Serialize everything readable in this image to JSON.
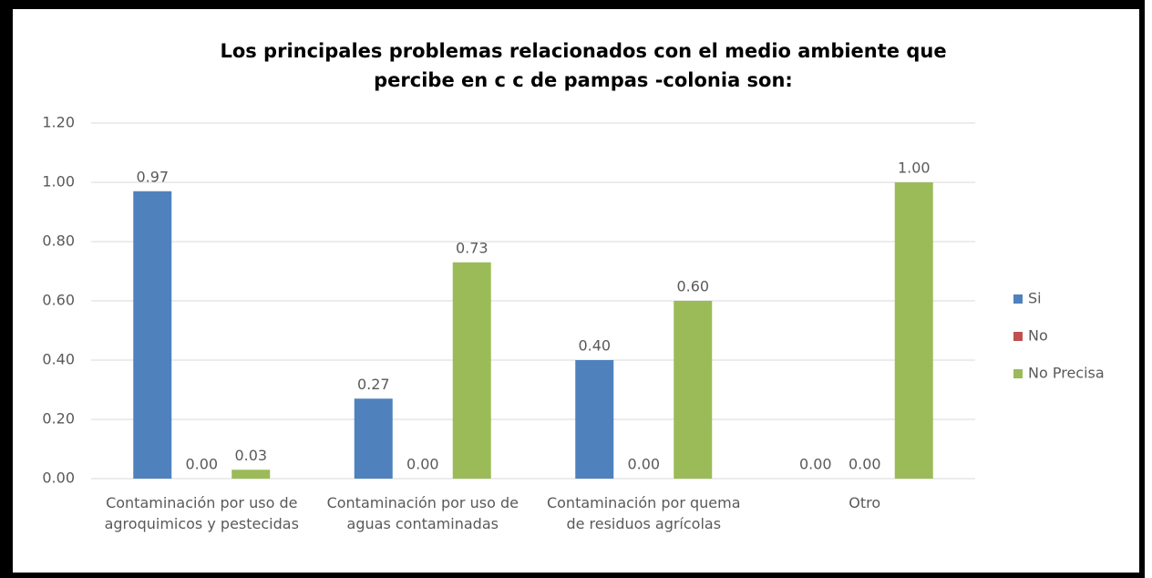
{
  "chart_data": {
    "type": "bar",
    "title": [
      "Los principales problemas relacionados con el medio ambiente que",
      "percibe en c c de pampas -colonia son:"
    ],
    "categories": [
      "Contaminación por uso de agroquimicos y pestecidas",
      "Contaminación por uso de aguas contaminadas",
      "Contaminación por quema de residuos agrícolas",
      "Otro"
    ],
    "series": [
      {
        "name": "Si",
        "color": "#4f81bd",
        "values": [
          0.97,
          0.27,
          0.4,
          0
        ],
        "value_labels": [
          "0.97",
          "0.27",
          "0.40",
          "0.00"
        ]
      },
      {
        "name": "No",
        "color": "#c0504d",
        "values": [
          0,
          0,
          0,
          0
        ],
        "value_labels": [
          "0.00",
          "0.00",
          "0.00",
          "0.00"
        ]
      },
      {
        "name": "No Precisa",
        "color": "#9bbb59",
        "values": [
          0.03,
          0.73,
          0.6,
          1
        ],
        "value_labels": [
          "0.03",
          "0.73",
          "0.60",
          "1.00"
        ]
      }
    ],
    "ylim": [
      0,
      1.2
    ],
    "yticks": [
      {
        "value": 0,
        "label": "0.00"
      },
      {
        "value": 0.2,
        "label": "0.20"
      },
      {
        "value": 0.4,
        "label": "0.40"
      },
      {
        "value": 0.6,
        "label": "0.60"
      },
      {
        "value": 0.8,
        "label": "0.80"
      },
      {
        "value": 1,
        "label": "1.00"
      },
      {
        "value": 1.2,
        "label": "1.20"
      }
    ],
    "grid": true,
    "legend": "right"
  }
}
